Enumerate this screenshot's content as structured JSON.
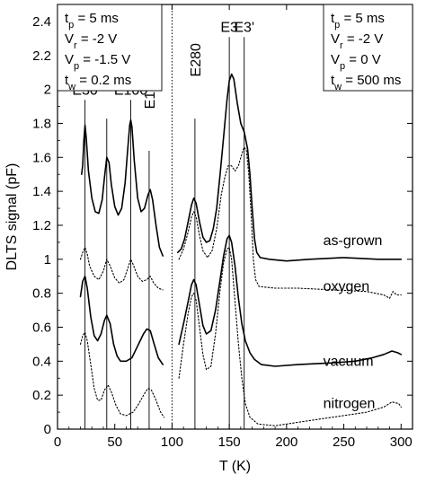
{
  "chart_data": {
    "type": "line",
    "title": "",
    "xlabel": "T (K)",
    "ylabel": "DLTS signal (pF)",
    "xlim": [
      0,
      310
    ],
    "ylim": [
      0,
      2.5
    ],
    "xticks": [
      0,
      50,
      100,
      150,
      200,
      250,
      300
    ],
    "yticks": [
      0,
      0.2,
      0.4,
      0.6,
      0.8,
      1,
      1.2,
      1.4,
      1.6,
      1.8,
      2,
      2.2,
      2.4
    ],
    "grid": false,
    "divider_x": 100,
    "params_left": [
      {
        "base": "t",
        "sub": "p",
        "rest": " = 5 ms"
      },
      {
        "base": "V",
        "sub": "r",
        "rest": " = -2 V"
      },
      {
        "base": "V",
        "sub": "p",
        "rest": " = -1.5 V"
      },
      {
        "base": "t",
        "sub": "w",
        "rest": " = 0.2 ms"
      }
    ],
    "params_right": [
      {
        "base": "t",
        "sub": "p",
        "rest": " = 5 ms"
      },
      {
        "base": "V",
        "sub": "r",
        "rest": " = -2 V"
      },
      {
        "base": "V",
        "sub": "p",
        "rest": " = 0 V"
      },
      {
        "base": "t",
        "sub": "w",
        "rest": " = 500 ms"
      }
    ],
    "peaks": [
      {
        "label": "E30",
        "x": 24,
        "label_y": 1.97,
        "rotated": false
      },
      {
        "label": "E64",
        "x": 43,
        "label_y": 1.86,
        "rotated": true
      },
      {
        "label": "E100",
        "x": 64,
        "label_y": 1.97,
        "rotated": false
      },
      {
        "label": "E140",
        "x": 80,
        "label_y": 1.67,
        "rotated": true
      },
      {
        "label": "E280",
        "x": 120,
        "label_y": 1.86,
        "rotated": true
      },
      {
        "label": "E3",
        "x": 150,
        "label_y": 2.34,
        "rotated": false
      },
      {
        "label": "E3'",
        "x": 163,
        "label_y": 2.34,
        "rotated": false
      }
    ],
    "series": [
      {
        "name": "as-grown",
        "style": "solid",
        "segments": [
          [
            [
              21,
              1.5
            ],
            [
              22,
              1.55
            ],
            [
              23,
              1.7
            ],
            [
              24,
              1.79
            ],
            [
              25,
              1.72
            ],
            [
              27,
              1.52
            ],
            [
              30,
              1.36
            ],
            [
              33,
              1.28
            ],
            [
              36,
              1.27
            ],
            [
              39,
              1.35
            ],
            [
              41,
              1.48
            ],
            [
              43,
              1.6
            ],
            [
              45,
              1.57
            ],
            [
              47,
              1.44
            ],
            [
              50,
              1.31
            ],
            [
              53,
              1.26
            ],
            [
              56,
              1.3
            ],
            [
              59,
              1.45
            ],
            [
              61,
              1.62
            ],
            [
              63,
              1.79
            ],
            [
              64,
              1.82
            ],
            [
              65,
              1.78
            ],
            [
              67,
              1.58
            ],
            [
              70,
              1.36
            ],
            [
              73,
              1.28
            ],
            [
              76,
              1.3
            ],
            [
              79,
              1.38
            ],
            [
              81,
              1.41
            ],
            [
              83,
              1.35
            ],
            [
              86,
              1.2
            ],
            [
              89,
              1.07
            ],
            [
              92,
              1.02
            ]
          ],
          [
            [
              105,
              1.04
            ],
            [
              108,
              1.06
            ],
            [
              111,
              1.12
            ],
            [
              114,
              1.22
            ],
            [
              117,
              1.32
            ],
            [
              119,
              1.36
            ],
            [
              121,
              1.33
            ],
            [
              124,
              1.22
            ],
            [
              127,
              1.13
            ],
            [
              130,
              1.1
            ],
            [
              133,
              1.11
            ],
            [
              136,
              1.18
            ],
            [
              139,
              1.3
            ],
            [
              142,
              1.5
            ],
            [
              145,
              1.72
            ],
            [
              148,
              1.94
            ],
            [
              150,
              2.05
            ],
            [
              152,
              2.09
            ],
            [
              154,
              2.06
            ],
            [
              157,
              1.92
            ],
            [
              160,
              1.8
            ],
            [
              163,
              1.75
            ],
            [
              166,
              1.65
            ],
            [
              168,
              1.5
            ],
            [
              170,
              1.3
            ],
            [
              172,
              1.12
            ],
            [
              174,
              1.04
            ],
            [
              177,
              1.01
            ],
            [
              185,
              1.0
            ],
            [
              200,
              0.99
            ],
            [
              220,
              1.0
            ],
            [
              250,
              1.01
            ],
            [
              280,
              1.0
            ],
            [
              300,
              1.0
            ]
          ]
        ]
      },
      {
        "name": "oxygen",
        "style": "dotted",
        "segments": [
          [
            [
              20,
              1.0
            ],
            [
              22,
              1.04
            ],
            [
              24,
              1.07
            ],
            [
              26,
              1.03
            ],
            [
              28,
              0.96
            ],
            [
              32,
              0.9
            ],
            [
              36,
              0.88
            ],
            [
              40,
              0.93
            ],
            [
              43,
              1.0
            ],
            [
              46,
              0.96
            ],
            [
              50,
              0.89
            ],
            [
              54,
              0.86
            ],
            [
              58,
              0.88
            ],
            [
              62,
              0.96
            ],
            [
              64,
              1.0
            ],
            [
              66,
              0.97
            ],
            [
              70,
              0.9
            ],
            [
              74,
              0.87
            ],
            [
              78,
              0.88
            ],
            [
              81,
              0.9
            ],
            [
              84,
              0.86
            ],
            [
              88,
              0.83
            ],
            [
              92,
              0.82
            ]
          ],
          [
            [
              106,
              1.0
            ],
            [
              110,
              1.06
            ],
            [
              114,
              1.16
            ],
            [
              117,
              1.25
            ],
            [
              119,
              1.28
            ],
            [
              121,
              1.25
            ],
            [
              124,
              1.14
            ],
            [
              127,
              1.05
            ],
            [
              131,
              1.01
            ],
            [
              135,
              1.05
            ],
            [
              139,
              1.18
            ],
            [
              143,
              1.38
            ],
            [
              146,
              1.48
            ],
            [
              149,
              1.55
            ],
            [
              152,
              1.55
            ],
            [
              155,
              1.52
            ],
            [
              158,
              1.55
            ],
            [
              161,
              1.62
            ],
            [
              163,
              1.66
            ],
            [
              165,
              1.64
            ],
            [
              167,
              1.5
            ],
            [
              169,
              1.28
            ],
            [
              171,
              1.0
            ],
            [
              173,
              0.88
            ],
            [
              176,
              0.84
            ],
            [
              190,
              0.83
            ],
            [
              210,
              0.83
            ],
            [
              240,
              0.82
            ],
            [
              270,
              0.81
            ],
            [
              285,
              0.79
            ],
            [
              290,
              0.77
            ],
            [
              293,
              0.81
            ],
            [
              296,
              0.79
            ],
            [
              300,
              0.79
            ]
          ]
        ]
      },
      {
        "name": "vacuum",
        "style": "solid",
        "segments": [
          [
            [
              20,
              0.78
            ],
            [
              22,
              0.87
            ],
            [
              24,
              0.9
            ],
            [
              26,
              0.83
            ],
            [
              29,
              0.66
            ],
            [
              32,
              0.55
            ],
            [
              35,
              0.52
            ],
            [
              38,
              0.56
            ],
            [
              41,
              0.64
            ],
            [
              43,
              0.67
            ],
            [
              46,
              0.62
            ],
            [
              49,
              0.5
            ],
            [
              52,
              0.43
            ],
            [
              55,
              0.4
            ],
            [
              60,
              0.4
            ],
            [
              65,
              0.42
            ],
            [
              70,
              0.49
            ],
            [
              75,
              0.56
            ],
            [
              78,
              0.59
            ],
            [
              81,
              0.58
            ],
            [
              84,
              0.51
            ],
            [
              88,
              0.42
            ],
            [
              92,
              0.38
            ]
          ],
          [
            [
              106,
              0.5
            ],
            [
              110,
              0.62
            ],
            [
              114,
              0.75
            ],
            [
              117,
              0.85
            ],
            [
              119,
              0.88
            ],
            [
              121,
              0.85
            ],
            [
              124,
              0.73
            ],
            [
              127,
              0.61
            ],
            [
              130,
              0.56
            ],
            [
              134,
              0.58
            ],
            [
              138,
              0.7
            ],
            [
              142,
              0.88
            ],
            [
              145,
              1.02
            ],
            [
              148,
              1.12
            ],
            [
              150,
              1.14
            ],
            [
              152,
              1.1
            ],
            [
              155,
              0.96
            ],
            [
              158,
              0.77
            ],
            [
              161,
              0.62
            ],
            [
              164,
              0.52
            ],
            [
              168,
              0.45
            ],
            [
              172,
              0.41
            ],
            [
              178,
              0.38
            ],
            [
              190,
              0.37
            ],
            [
              210,
              0.38
            ],
            [
              240,
              0.39
            ],
            [
              260,
              0.4
            ],
            [
              275,
              0.42
            ],
            [
              285,
              0.44
            ],
            [
              292,
              0.46
            ],
            [
              297,
              0.45
            ],
            [
              300,
              0.44
            ]
          ]
        ]
      },
      {
        "name": "nitrogen",
        "style": "dotted",
        "segments": [
          [
            [
              20,
              0.5
            ],
            [
              22,
              0.55
            ],
            [
              24,
              0.57
            ],
            [
              26,
              0.52
            ],
            [
              29,
              0.38
            ],
            [
              32,
              0.24
            ],
            [
              35,
              0.17
            ],
            [
              38,
              0.17
            ],
            [
              41,
              0.23
            ],
            [
              44,
              0.26
            ],
            [
              47,
              0.22
            ],
            [
              51,
              0.14
            ],
            [
              55,
              0.09
            ],
            [
              60,
              0.08
            ],
            [
              66,
              0.1
            ],
            [
              71,
              0.15
            ],
            [
              76,
              0.21
            ],
            [
              79,
              0.24
            ],
            [
              82,
              0.23
            ],
            [
              86,
              0.17
            ],
            [
              90,
              0.1
            ],
            [
              93,
              0.07
            ]
          ],
          [
            [
              106,
              0.3
            ],
            [
              110,
              0.5
            ],
            [
              114,
              0.68
            ],
            [
              117,
              0.78
            ],
            [
              119,
              0.8
            ],
            [
              121,
              0.76
            ],
            [
              124,
              0.6
            ],
            [
              127,
              0.44
            ],
            [
              130,
              0.35
            ],
            [
              134,
              0.37
            ],
            [
              138,
              0.56
            ],
            [
              142,
              0.82
            ],
            [
              145,
              0.98
            ],
            [
              148,
              1.06
            ],
            [
              150,
              1.07
            ],
            [
              152,
              1.0
            ],
            [
              155,
              0.75
            ],
            [
              158,
              0.5
            ],
            [
              161,
              0.3
            ],
            [
              164,
              0.15
            ],
            [
              168,
              0.07
            ],
            [
              175,
              0.03
            ],
            [
              190,
              0.02
            ],
            [
              210,
              0.04
            ],
            [
              230,
              0.06
            ],
            [
              250,
              0.08
            ],
            [
              270,
              0.1
            ],
            [
              285,
              0.13
            ],
            [
              292,
              0.16
            ],
            [
              298,
              0.15
            ],
            [
              300,
              0.13
            ]
          ]
        ]
      }
    ],
    "curve_labels": [
      {
        "text": "as-grown",
        "x": 232,
        "y": 1.11
      },
      {
        "text": "oxygen",
        "x": 232,
        "y": 0.84
      },
      {
        "text": "vacuum",
        "x": 232,
        "y": 0.4
      },
      {
        "text": "nitrogen",
        "x": 232,
        "y": 0.15
      }
    ]
  }
}
